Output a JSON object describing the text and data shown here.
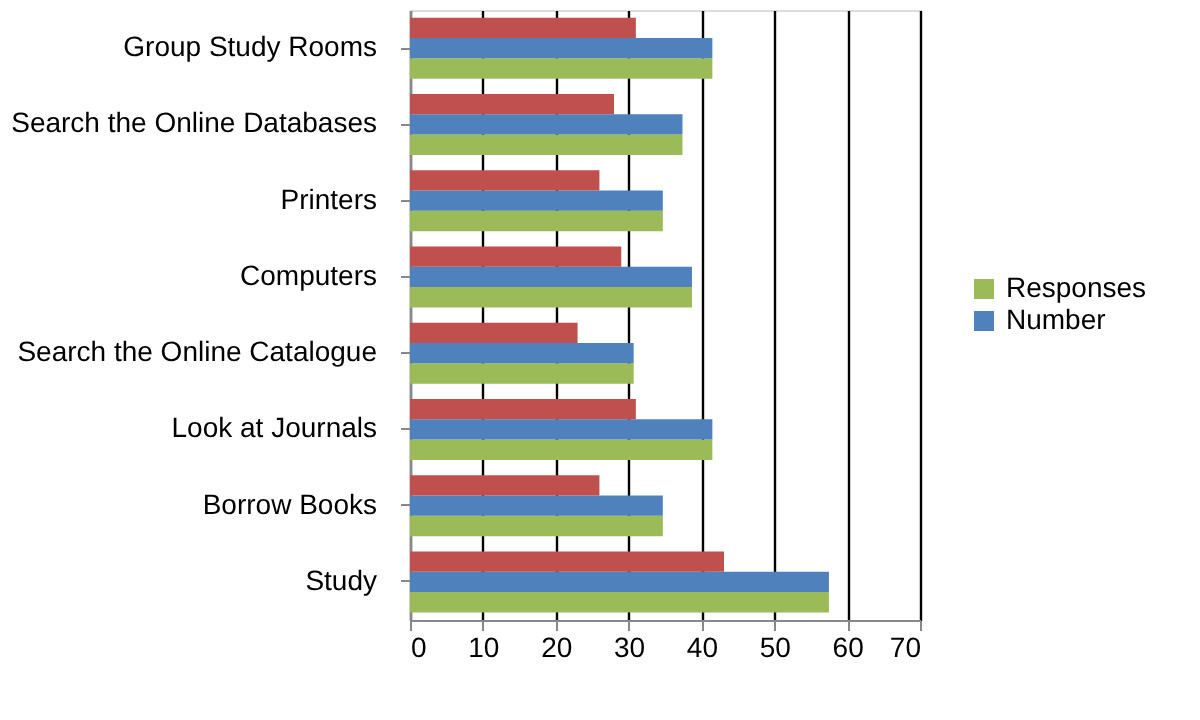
{
  "chart_data": {
    "type": "bar",
    "orientation": "horizontal",
    "categories": [
      "Group Study Rooms",
      "Search the Online Databases",
      "Printers",
      "Computers",
      "Search the Online Catalogue",
      "Look at Journals",
      "Borrow Books",
      "Study"
    ],
    "series": [
      {
        "name": "Responses",
        "color": "#9bbb59",
        "values": [
          41.5,
          37.4,
          34.7,
          38.7,
          30.7,
          41.5,
          34.7,
          57.5
        ]
      },
      {
        "name": "Number",
        "color": "#4f81bd",
        "values": [
          41.5,
          37.4,
          34.7,
          38.7,
          30.7,
          41.5,
          34.7,
          57.5
        ]
      },
      {
        "color": "#c0504d",
        "values": [
          31,
          28,
          26,
          29,
          23,
          31,
          26,
          43.1
        ]
      }
    ],
    "xlim": [
      0,
      70
    ],
    "xticks": [
      0,
      10,
      20,
      30,
      40,
      50,
      60,
      70
    ],
    "grid": "x",
    "legend": "right"
  }
}
